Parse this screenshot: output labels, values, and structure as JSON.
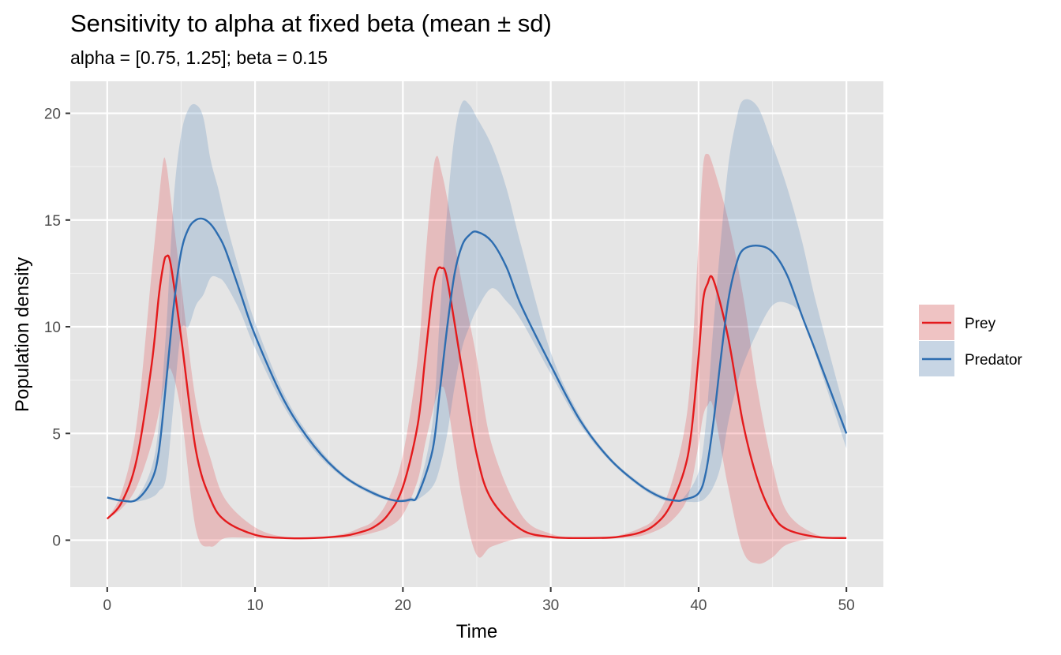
{
  "chart_data": {
    "type": "line",
    "title": "Sensitivity to alpha at fixed beta (mean ± sd)",
    "subtitle": "alpha = [0.75, 1.25]; beta = 0.15",
    "xlabel": "Time",
    "ylabel": "Population density",
    "xlim": [
      -2.5,
      52.5
    ],
    "ylim": [
      -2.2,
      21.5
    ],
    "x_ticks": [
      0,
      10,
      20,
      30,
      40,
      50
    ],
    "x_tick_labels": [
      "0",
      "10",
      "20",
      "30",
      "40",
      "50"
    ],
    "y_ticks": [
      0,
      5,
      10,
      15,
      20
    ],
    "y_tick_labels": [
      "0",
      "5",
      "10",
      "15",
      "20"
    ],
    "grid": true,
    "legend_position": "right",
    "series": [
      {
        "name": "Prey",
        "color": "#e41a1c",
        "band_color": "#e41a1c",
        "x": [
          0,
          1,
          2,
          3,
          3.5,
          3.8,
          4,
          4.3,
          5,
          6,
          7,
          8,
          10,
          12,
          14,
          16,
          17,
          18,
          19,
          20,
          21,
          21.5,
          22,
          22.3,
          22.6,
          23,
          24,
          25,
          26,
          28,
          30,
          32,
          34,
          35,
          36,
          37,
          38,
          39,
          39.5,
          40,
          40.3,
          40.6,
          41,
          42,
          43,
          44,
          45,
          46,
          48,
          50
        ],
        "mean": [
          1.0,
          1.8,
          3.8,
          8.2,
          11.5,
          12.9,
          13.3,
          12.9,
          9.5,
          4.2,
          1.9,
          0.9,
          0.25,
          0.1,
          0.1,
          0.2,
          0.35,
          0.6,
          1.2,
          2.5,
          5.4,
          8.5,
          11.6,
          12.6,
          12.75,
          12.2,
          8.0,
          4.0,
          1.9,
          0.5,
          0.15,
          0.1,
          0.12,
          0.2,
          0.35,
          0.7,
          1.5,
          3.2,
          5.0,
          8.6,
          11.2,
          12.0,
          12.2,
          9.5,
          5.5,
          2.8,
          1.2,
          0.5,
          0.15,
          0.1
        ],
        "lower": [
          1.0,
          1.5,
          2.5,
          4.5,
          6.0,
          7.0,
          7.5,
          8.0,
          6.0,
          0.5,
          -0.3,
          0.1,
          0.1,
          0.1,
          0.1,
          0.12,
          0.2,
          0.35,
          0.6,
          1.2,
          2.8,
          4.5,
          6.0,
          6.8,
          7.2,
          6.5,
          2.0,
          -0.7,
          -0.3,
          0.1,
          0.1,
          0.1,
          0.1,
          0.12,
          0.18,
          0.4,
          0.8,
          1.6,
          2.6,
          4.5,
          5.8,
          6.3,
          6.2,
          2.5,
          -0.5,
          -1.1,
          -0.8,
          -0.2,
          0.1,
          0.1
        ],
        "upper": [
          1.0,
          2.3,
          5.5,
          12.5,
          16.0,
          17.8,
          17.6,
          16.0,
          12.0,
          6.5,
          3.8,
          1.9,
          0.6,
          0.15,
          0.12,
          0.3,
          0.55,
          0.9,
          1.9,
          4.0,
          8.5,
          13.0,
          17.0,
          18.0,
          17.3,
          16.0,
          12.0,
          8.5,
          4.5,
          1.2,
          0.3,
          0.12,
          0.15,
          0.3,
          0.55,
          1.0,
          2.3,
          5.0,
          8.0,
          14.0,
          17.5,
          18.1,
          17.5,
          15.0,
          11.5,
          7.0,
          3.5,
          1.3,
          0.25,
          0.1
        ]
      },
      {
        "name": "Predator",
        "color": "#2d6db0",
        "band_color": "#2d6db0",
        "x": [
          0,
          1,
          2,
          3,
          3.5,
          4,
          4.5,
          5,
          5.5,
          6,
          6.5,
          7,
          7.5,
          8,
          9,
          10,
          12,
          14,
          16,
          18,
          19.5,
          20.5,
          21,
          22,
          22.5,
          23,
          23.5,
          24,
          24.5,
          25,
          26,
          27,
          28,
          30,
          32,
          34,
          36,
          37.5,
          38.5,
          39,
          40,
          40.5,
          41,
          41.5,
          42,
          42.5,
          43,
          44,
          45,
          46,
          47,
          48,
          50
        ],
        "mean": [
          2.0,
          1.85,
          1.9,
          2.8,
          4.2,
          7.5,
          11.0,
          13.5,
          14.6,
          15.0,
          15.05,
          14.8,
          14.3,
          13.6,
          11.6,
          9.6,
          6.5,
          4.4,
          3.0,
          2.2,
          1.85,
          1.9,
          2.1,
          4.2,
          7.0,
          10.0,
          12.5,
          13.8,
          14.3,
          14.45,
          14.0,
          12.8,
          11.0,
          8.2,
          5.6,
          3.8,
          2.6,
          2.0,
          1.85,
          1.9,
          2.2,
          3.2,
          5.5,
          8.5,
          11.2,
          12.8,
          13.6,
          13.8,
          13.5,
          12.4,
          10.5,
          8.7,
          5.0
        ],
        "lower": [
          2.0,
          1.8,
          1.8,
          2.0,
          2.3,
          3.0,
          6.5,
          9.8,
          10.0,
          11.0,
          11.5,
          12.3,
          12.3,
          12.0,
          10.7,
          9.0,
          6.2,
          4.2,
          2.9,
          2.1,
          1.8,
          1.8,
          1.9,
          2.5,
          3.4,
          5.0,
          7.2,
          9.0,
          10.0,
          10.8,
          11.8,
          11.2,
          10.3,
          7.8,
          5.4,
          3.7,
          2.5,
          1.9,
          1.8,
          1.8,
          1.8,
          2.0,
          2.5,
          3.5,
          5.5,
          7.0,
          8.2,
          9.8,
          11.0,
          11.1,
          10.5,
          8.5,
          4.3
        ],
        "upper": [
          2.0,
          1.9,
          2.0,
          3.4,
          5.5,
          10.0,
          16.0,
          19.0,
          20.2,
          20.4,
          19.8,
          17.8,
          16.5,
          15.0,
          12.5,
          10.2,
          6.8,
          4.6,
          3.1,
          2.3,
          1.9,
          2.0,
          2.3,
          5.5,
          10.5,
          15.5,
          19.0,
          20.5,
          20.4,
          19.8,
          18.5,
          16.5,
          13.8,
          8.8,
          5.8,
          3.9,
          2.7,
          2.1,
          1.9,
          2.0,
          3.2,
          5.5,
          10.0,
          14.0,
          17.5,
          19.5,
          20.6,
          20.3,
          18.5,
          16.5,
          14.0,
          11.0,
          5.8
        ]
      }
    ]
  }
}
